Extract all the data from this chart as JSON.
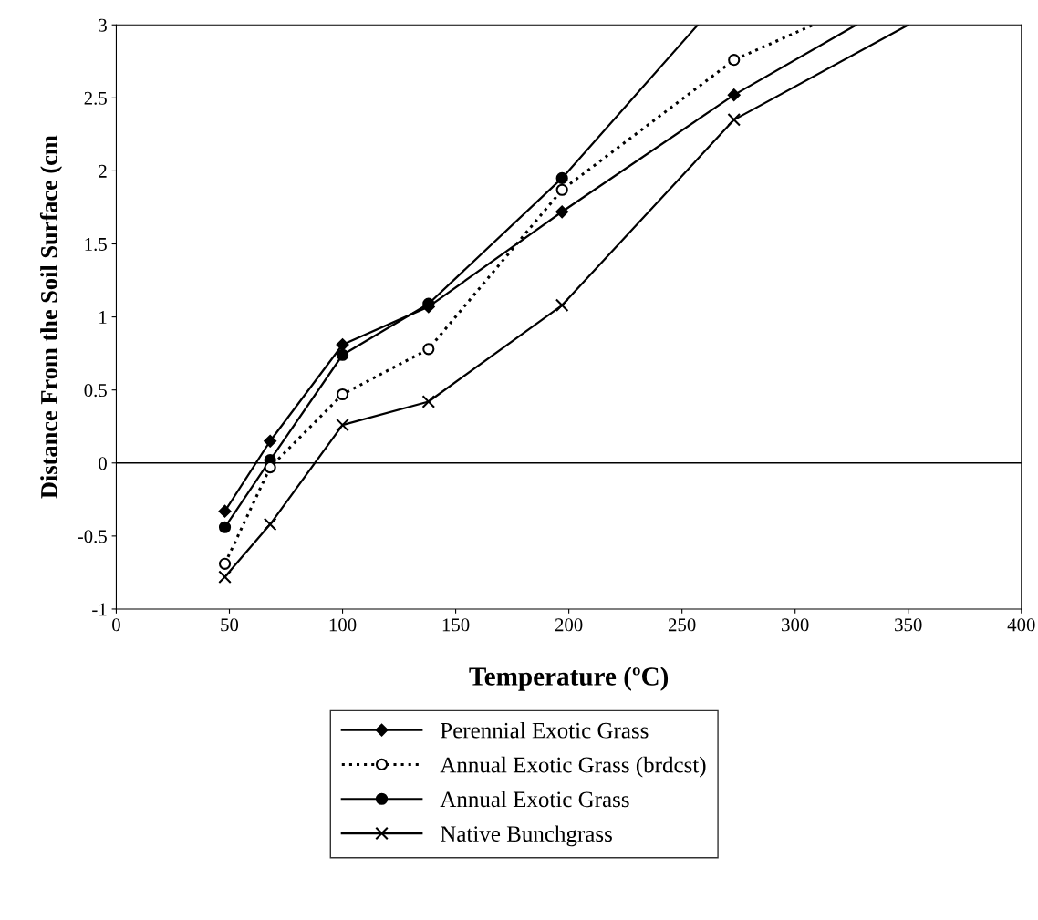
{
  "chart_data": {
    "type": "line",
    "xlabel": "Temperature (ºC)",
    "ylabel": "Distance From the Soil Surface (cm",
    "xlim": [
      0,
      400
    ],
    "xticks": [
      0,
      50,
      100,
      150,
      200,
      250,
      300,
      350,
      400
    ],
    "ylim": [
      -1,
      3
    ],
    "yticks": [
      -1,
      -0.5,
      0,
      0.5,
      1,
      1.5,
      2,
      2.5,
      3
    ],
    "grid": false,
    "legend": "bottom",
    "ref_lines": [
      {
        "axis": "y",
        "value": 0,
        "label": null,
        "color": "#000000"
      }
    ],
    "series": [
      {
        "name": "Perennial Exotic Grass",
        "color": "#000000",
        "marker": "diamond",
        "line_style": "solid",
        "x": [
          48,
          68,
          100,
          138,
          197,
          273,
          327
        ],
        "values": [
          -0.33,
          0.15,
          0.81,
          1.07,
          1.72,
          2.52,
          3
        ]
      },
      {
        "name": "Annual Exotic Grass (brdcst)",
        "color": "#000000",
        "marker": "circle",
        "line_style": "dotted",
        "x": [
          48,
          68,
          100,
          138,
          197,
          273,
          308
        ],
        "values": [
          -0.69,
          -0.03,
          0.47,
          0.78,
          1.87,
          2.76,
          3
        ]
      },
      {
        "name": "Annual Exotic Grass",
        "color": "#000000",
        "marker": "circle",
        "line_style": "solid",
        "x": [
          48,
          68,
          100,
          138,
          197,
          257
        ],
        "values": [
          -0.44,
          0.02,
          0.74,
          1.09,
          1.95,
          3
        ]
      },
      {
        "name": "Native Bunchgrass",
        "color": "#000000",
        "marker": "cross",
        "line_style": "solid",
        "x": [
          48,
          68,
          100,
          138,
          197,
          273,
          350
        ],
        "values": [
          -0.78,
          -0.42,
          0.26,
          0.42,
          1.08,
          2.35,
          3
        ]
      }
    ]
  }
}
